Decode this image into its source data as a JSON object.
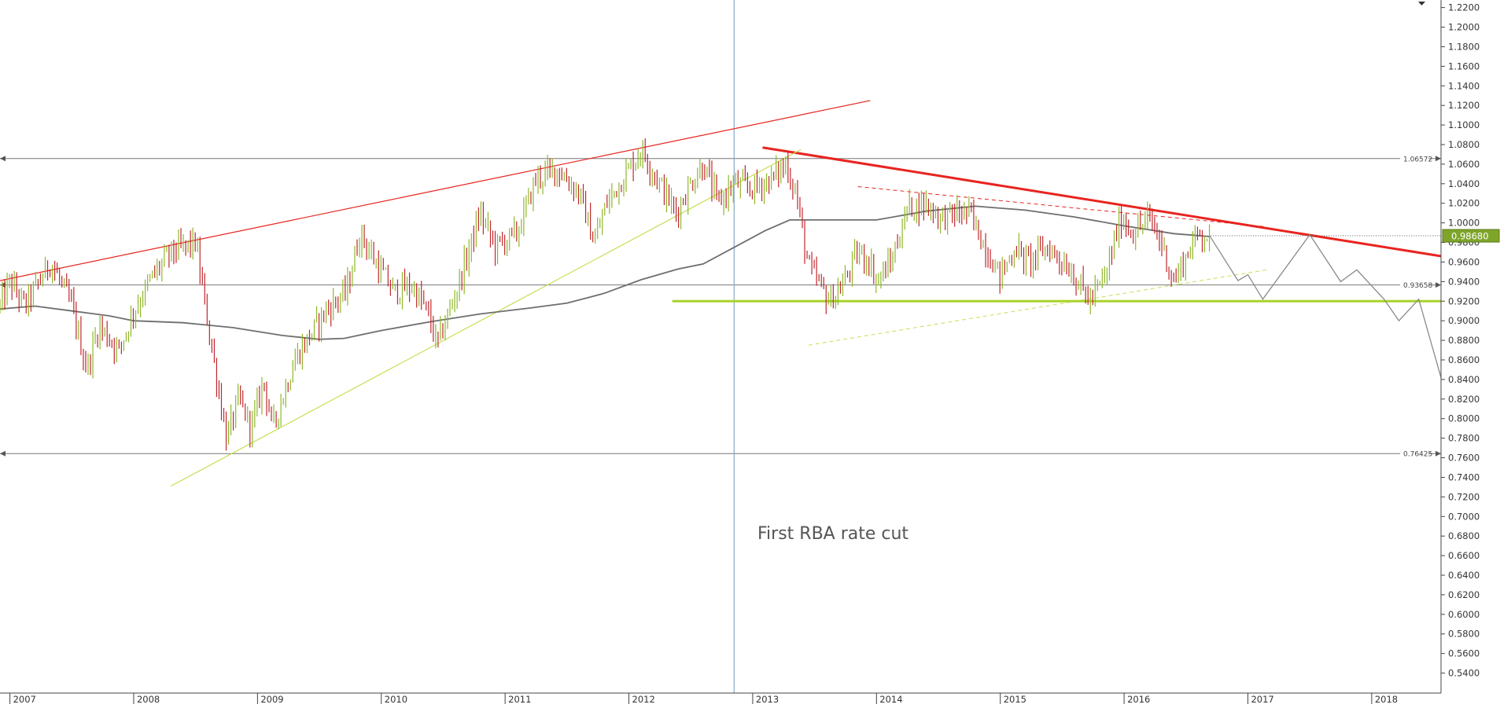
{
  "chart_data": {
    "type": "ohlc",
    "instrument_note": "",
    "colors": {
      "up_bar": "#8fb82a",
      "down_bar": "#c0272d",
      "moving_average": "#6e6e6e",
      "resistance_red": "#e8241f",
      "support_green": "#a9d22a",
      "trendline_light_green": "#c5e052",
      "horizontal_level": "#777777",
      "event_line": "#8aa9c8",
      "projection": "#8a8a8a",
      "price_tag": "#7ea52a"
    },
    "y_axis": {
      "range": [
        0.53,
        1.2225
      ],
      "ticks": [
        "1.2200",
        "1.2000",
        "1.1800",
        "1.1600",
        "1.1400",
        "1.1200",
        "1.1000",
        "1.0800",
        "1.0600",
        "1.0400",
        "1.0200",
        "1.0000",
        "0.9800",
        "0.9600",
        "0.9400",
        "0.9200",
        "0.9000",
        "0.8800",
        "0.8600",
        "0.8400",
        "0.8200",
        "0.8000",
        "0.7800",
        "0.7600",
        "0.7400",
        "0.7200",
        "0.7000",
        "0.6800",
        "0.6600",
        "0.6400",
        "0.6200",
        "0.6000",
        "0.5800",
        "0.5600",
        "0.5400"
      ],
      "grid": false
    },
    "x_axis": {
      "range": [
        2006.92,
        2018.56
      ],
      "years": [
        "2007",
        "2008",
        "2009",
        "2010",
        "2011",
        "2012",
        "2013",
        "2014",
        "2015",
        "2016",
        "2017",
        "2018"
      ]
    },
    "last_price": "0.98680",
    "horizontal_levels": [
      {
        "value": 1.06572,
        "label": "1.06572"
      },
      {
        "value": 0.93658,
        "label": "0.93658"
      },
      {
        "value": 0.76425,
        "label": "0.76425"
      }
    ],
    "annotation": "First RBA rate cut",
    "event_line_x": 2012.85,
    "price_anchors": [
      [
        2006.92,
        0.915
      ],
      [
        2007.0,
        0.94
      ],
      [
        2007.12,
        0.915
      ],
      [
        2007.33,
        0.96
      ],
      [
        2007.5,
        0.915
      ],
      [
        2007.62,
        0.85
      ],
      [
        2007.72,
        0.895
      ],
      [
        2007.88,
        0.87
      ],
      [
        2008.0,
        0.91
      ],
      [
        2008.15,
        0.945
      ],
      [
        2008.3,
        0.97
      ],
      [
        2008.5,
        0.98
      ],
      [
        2008.62,
        0.88
      ],
      [
        2008.75,
        0.78
      ],
      [
        2008.85,
        0.82
      ],
      [
        2008.95,
        0.79
      ],
      [
        2009.05,
        0.84
      ],
      [
        2009.12,
        0.79
      ],
      [
        2009.3,
        0.86
      ],
      [
        2009.45,
        0.89
      ],
      [
        2009.55,
        0.91
      ],
      [
        2009.72,
        0.93
      ],
      [
        2009.83,
        0.99
      ],
      [
        2009.95,
        0.96
      ],
      [
        2010.1,
        0.93
      ],
      [
        2010.25,
        0.935
      ],
      [
        2010.37,
        0.91
      ],
      [
        2010.45,
        0.875
      ],
      [
        2010.62,
        0.935
      ],
      [
        2010.8,
        1.01
      ],
      [
        2010.92,
        0.975
      ],
      [
        2011.1,
        0.99
      ],
      [
        2011.25,
        1.045
      ],
      [
        2011.42,
        1.055
      ],
      [
        2011.6,
        1.03
      ],
      [
        2011.72,
        0.98
      ],
      [
        2011.82,
        1.02
      ],
      [
        2012.0,
        1.055
      ],
      [
        2012.1,
        1.075
      ],
      [
        2012.25,
        1.04
      ],
      [
        2012.38,
        1.01
      ],
      [
        2012.5,
        1.04
      ],
      [
        2012.6,
        1.06
      ],
      [
        2012.72,
        1.02
      ],
      [
        2012.85,
        1.04
      ],
      [
        2013.0,
        1.035
      ],
      [
        2013.15,
        1.045
      ],
      [
        2013.27,
        1.06
      ],
      [
        2013.35,
        1.03
      ],
      [
        2013.45,
        0.955
      ],
      [
        2013.55,
        0.935
      ],
      [
        2013.62,
        0.92
      ],
      [
        2013.72,
        0.935
      ],
      [
        2013.85,
        0.97
      ],
      [
        2013.95,
        0.96
      ],
      [
        2014.0,
        0.94
      ],
      [
        2014.12,
        0.96
      ],
      [
        2014.25,
        1.015
      ],
      [
        2014.4,
        1.02
      ],
      [
        2014.52,
        1.005
      ],
      [
        2014.65,
        1.01
      ],
      [
        2014.75,
        1.01
      ],
      [
        2014.88,
        0.975
      ],
      [
        2015.0,
        0.945
      ],
      [
        2015.12,
        0.975
      ],
      [
        2015.22,
        0.96
      ],
      [
        2015.38,
        0.975
      ],
      [
        2015.55,
        0.955
      ],
      [
        2015.65,
        0.935
      ],
      [
        2015.72,
        0.92
      ],
      [
        2015.85,
        0.945
      ],
      [
        2015.97,
        1.005
      ],
      [
        2016.08,
        0.99
      ],
      [
        2016.2,
        1.005
      ],
      [
        2016.3,
        0.98
      ],
      [
        2016.4,
        0.94
      ],
      [
        2016.5,
        0.965
      ],
      [
        2016.6,
        0.99
      ],
      [
        2016.7,
        0.985
      ]
    ],
    "moving_average": [
      [
        2006.92,
        0.912
      ],
      [
        2007.2,
        0.915
      ],
      [
        2007.5,
        0.91
      ],
      [
        2007.8,
        0.905
      ],
      [
        2008.0,
        0.9
      ],
      [
        2008.4,
        0.898
      ],
      [
        2008.8,
        0.893
      ],
      [
        2009.2,
        0.885
      ],
      [
        2009.5,
        0.881
      ],
      [
        2009.7,
        0.882
      ],
      [
        2010.0,
        0.89
      ],
      [
        2010.4,
        0.899
      ],
      [
        2010.8,
        0.907
      ],
      [
        2011.2,
        0.913
      ],
      [
        2011.5,
        0.918
      ],
      [
        2011.8,
        0.928
      ],
      [
        2012.1,
        0.942
      ],
      [
        2012.4,
        0.953
      ],
      [
        2012.6,
        0.958
      ],
      [
        2012.85,
        0.975
      ],
      [
        2013.1,
        0.992
      ],
      [
        2013.3,
        1.003
      ],
      [
        2013.6,
        1.003
      ],
      [
        2014.0,
        1.003
      ],
      [
        2014.4,
        1.012
      ],
      [
        2014.8,
        1.017
      ],
      [
        2015.2,
        1.013
      ],
      [
        2015.6,
        1.006
      ],
      [
        2016.0,
        0.997
      ],
      [
        2016.4,
        0.989
      ],
      [
        2016.7,
        0.986
      ]
    ],
    "trendlines": [
      {
        "name": "upper-red-channel",
        "from": [
          2006.92,
          0.941
        ],
        "to": [
          2013.95,
          1.125
        ],
        "style": "thin",
        "color": "resistance_red"
      },
      {
        "name": "descending-resistance",
        "from": [
          2013.08,
          1.077
        ],
        "to": [
          2018.56,
          0.966
        ],
        "style": "thick",
        "color": "resistance_red"
      },
      {
        "name": "dashed-resistance",
        "from": [
          2013.85,
          1.037
        ],
        "to": [
          2017.15,
          0.996
        ],
        "style": "dashed",
        "color": "resistance_red"
      },
      {
        "name": "rising-support",
        "from": [
          2008.3,
          0.731
        ],
        "to": [
          2013.39,
          1.075
        ],
        "style": "thin",
        "color": "trendline_light_green"
      },
      {
        "name": "dashed-support",
        "from": [
          2013.45,
          0.875
        ],
        "to": [
          2017.15,
          0.952
        ],
        "style": "dashed",
        "color": "trendline_light_green"
      },
      {
        "name": "horizontal-support",
        "from": [
          2012.35,
          0.92
        ],
        "to": [
          2018.56,
          0.92
        ],
        "style": "thick",
        "color": "support_green"
      }
    ],
    "projection": [
      [
        2016.7,
        0.985
      ],
      [
        2016.92,
        0.941
      ],
      [
        2017.0,
        0.947
      ],
      [
        2017.12,
        0.922
      ],
      [
        2017.5,
        0.988
      ],
      [
        2017.75,
        0.94
      ],
      [
        2017.88,
        0.952
      ],
      [
        2018.1,
        0.922
      ],
      [
        2018.22,
        0.9
      ],
      [
        2018.38,
        0.922
      ],
      [
        2018.56,
        0.842
      ]
    ]
  }
}
